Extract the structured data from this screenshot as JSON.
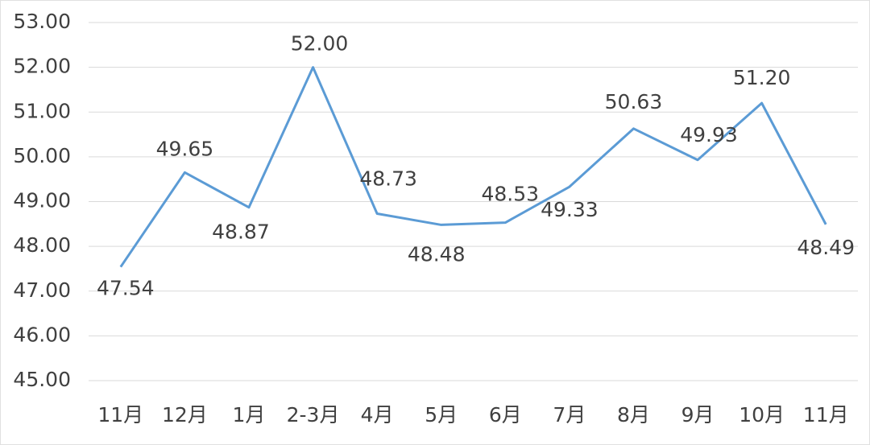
{
  "chart_data": {
    "type": "line",
    "categories": [
      "11月",
      "12月",
      "1月",
      "2-3月",
      "4月",
      "5月",
      "6月",
      "7月",
      "8月",
      "9月",
      "10月",
      "11月"
    ],
    "series": [
      {
        "color": "#5b9bd5",
        "values": [
          47.54,
          49.65,
          48.87,
          52.0,
          48.73,
          48.48,
          48.53,
          49.33,
          50.63,
          49.93,
          51.2,
          48.49
        ],
        "value_labels": [
          "47.54",
          "49.65",
          "48.87",
          "52.00",
          "48.73",
          "48.48",
          "48.53",
          "49.33",
          "50.63",
          "49.93",
          "51.20",
          "48.49"
        ]
      }
    ],
    "ylim": [
      45,
      53
    ],
    "yticks": [
      {
        "value": 45,
        "label": "45.00"
      },
      {
        "value": 46,
        "label": "46.00"
      },
      {
        "value": 47,
        "label": "47.00"
      },
      {
        "value": 48,
        "label": "48.00"
      },
      {
        "value": 49,
        "label": "49.00"
      },
      {
        "value": 50,
        "label": "50.00"
      },
      {
        "value": 51,
        "label": "51.00"
      },
      {
        "value": 52,
        "label": "52.00"
      },
      {
        "value": 53,
        "label": "53.00"
      }
    ],
    "grid": true
  }
}
